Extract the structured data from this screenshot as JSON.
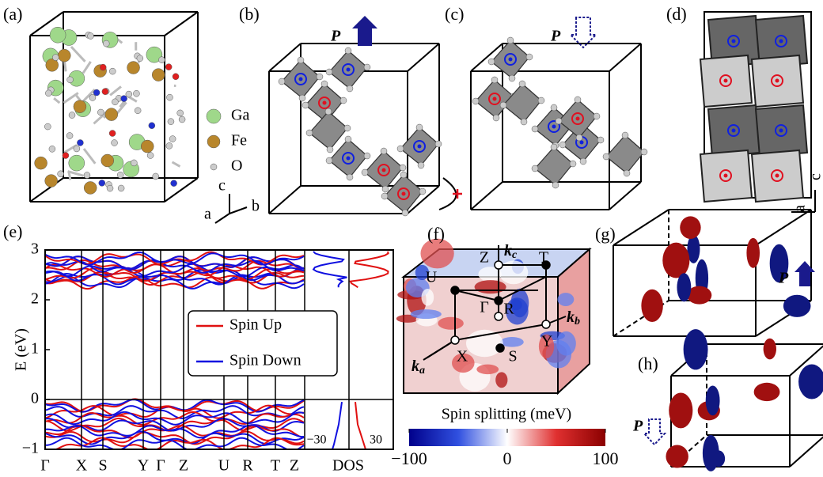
{
  "panels": {
    "a": "(a)",
    "b": "(b)",
    "c": "(c)",
    "d": "(d)",
    "e": "(e)",
    "f": "(f)",
    "g": "(g)",
    "h": "(h)"
  },
  "atoms": [
    "Ga",
    "Fe",
    "O"
  ],
  "lattice_axes": {
    "a": "a",
    "b": "b",
    "c": "c"
  },
  "polarization": "P",
  "panel_e": {
    "ylabel": "E (eV)",
    "ylim": [
      -1,
      3
    ],
    "yticks": [
      3,
      2,
      1,
      0,
      {
        "value": -1,
        "label": "−1"
      }
    ],
    "kpath": [
      "Γ",
      "X",
      "S",
      "Y",
      "Γ",
      "Z",
      "U",
      "R",
      "T",
      "Z"
    ],
    "legend": [
      "Spin Up",
      "Spin Down"
    ],
    "dos_label": "DOS",
    "dos_ticks": [
      "−30",
      "30"
    ]
  },
  "panel_f": {
    "points": [
      "Z",
      "T",
      "U",
      "Γ",
      "R",
      "Y",
      "X",
      "S"
    ],
    "axes": [
      {
        "k": "k",
        "sub": "c"
      },
      {
        "k": "k",
        "sub": "b"
      },
      {
        "k": "k",
        "sub": "a"
      }
    ],
    "colorbar_title": "Spin splitting (meV)",
    "clim": [
      -100,
      100
    ],
    "colorbar_ticks": [
      {
        "value": -100,
        "label": "−100"
      },
      0,
      100
    ]
  }
}
